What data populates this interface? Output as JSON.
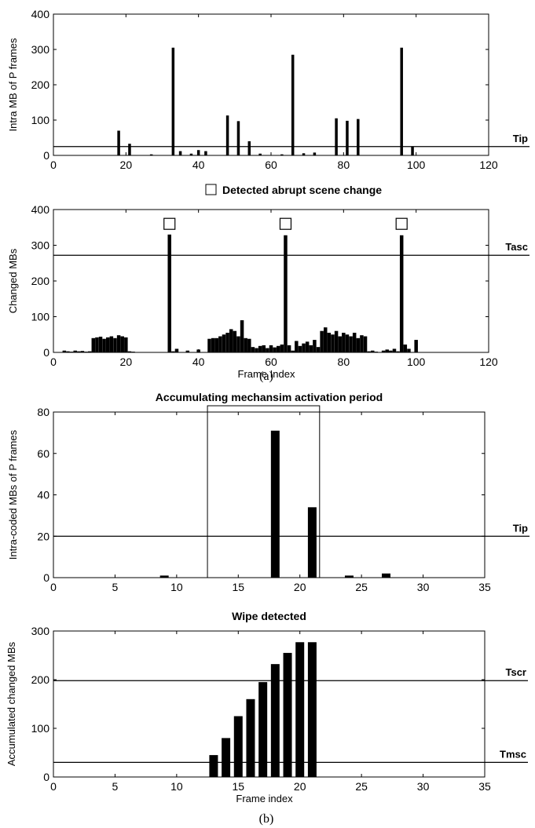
{
  "chart_data": [
    {
      "type": "bar",
      "ylabel": "Intra MB of P frames",
      "xlabel": "",
      "xlim": [
        0,
        120
      ],
      "ylim": [
        0,
        400
      ],
      "xticks": [
        0,
        20,
        40,
        60,
        80,
        100,
        120
      ],
      "yticks": [
        0,
        100,
        200,
        300,
        400
      ],
      "x": [
        18,
        21,
        27,
        33,
        35,
        38,
        40,
        42,
        48,
        51,
        54,
        57,
        63,
        66,
        69,
        72,
        78,
        81,
        84,
        96,
        99
      ],
      "values": [
        70,
        33,
        3,
        305,
        12,
        5,
        15,
        12,
        113,
        97,
        40,
        5,
        3,
        285,
        6,
        8,
        105,
        98,
        103,
        305,
        25
      ],
      "threshold": {
        "label": "Tip",
        "value": 25
      }
    },
    {
      "type": "bar",
      "title": "Detected abrupt scene change",
      "ylabel": "Changed MBs",
      "xlabel": "Frame Index",
      "xlim": [
        0,
        120
      ],
      "ylim": [
        0,
        400
      ],
      "xticks": [
        0,
        20,
        40,
        60,
        80,
        100,
        120
      ],
      "yticks": [
        0,
        100,
        200,
        300,
        400
      ],
      "x": [
        1,
        2,
        3,
        4,
        5,
        6,
        7,
        8,
        9,
        10,
        11,
        12,
        13,
        14,
        15,
        16,
        17,
        18,
        19,
        20,
        21,
        22,
        23,
        24,
        25,
        26,
        27,
        28,
        29,
        30,
        31,
        32,
        33,
        34,
        35,
        36,
        37,
        38,
        39,
        40,
        41,
        42,
        43,
        44,
        45,
        46,
        47,
        48,
        49,
        50,
        51,
        52,
        53,
        54,
        55,
        56,
        57,
        58,
        59,
        60,
        61,
        62,
        63,
        64,
        65,
        66,
        67,
        68,
        69,
        70,
        71,
        72,
        73,
        74,
        75,
        76,
        77,
        78,
        79,
        80,
        81,
        82,
        83,
        84,
        85,
        86,
        87,
        88,
        89,
        90,
        91,
        92,
        93,
        94,
        95,
        96,
        97,
        98,
        99,
        100
      ],
      "values": [
        0,
        0,
        5,
        3,
        2,
        5,
        3,
        4,
        2,
        3,
        40,
        42,
        44,
        38,
        42,
        45,
        40,
        48,
        45,
        42,
        3,
        2,
        1,
        0,
        0,
        0,
        0,
        0,
        0,
        0,
        0,
        330,
        3,
        10,
        0,
        0,
        5,
        0,
        0,
        8,
        0,
        0,
        38,
        40,
        40,
        45,
        50,
        55,
        65,
        60,
        45,
        90,
        40,
        38,
        15,
        12,
        18,
        20,
        12,
        20,
        14,
        18,
        22,
        328,
        20,
        5,
        32,
        18,
        25,
        30,
        20,
        35,
        15,
        60,
        70,
        55,
        50,
        60,
        45,
        55,
        50,
        45,
        55,
        40,
        48,
        45,
        3,
        5,
        2,
        0,
        5,
        8,
        5,
        10,
        3,
        328,
        22,
        10,
        0,
        35
      ],
      "threshold": {
        "label": "Tasc",
        "value": 272
      },
      "markers_x": [
        32,
        64,
        96
      ],
      "marker_value": 360,
      "caption": "(a)"
    },
    {
      "type": "bar",
      "title": "Accumulating mechansim activation period",
      "ylabel": "Intra-coded MBs of P frames",
      "xlabel": "",
      "xlim": [
        0,
        35
      ],
      "ylim": [
        0,
        80
      ],
      "xticks": [
        0,
        5,
        10,
        15,
        20,
        25,
        30,
        35
      ],
      "yticks": [
        0,
        20,
        40,
        60,
        80
      ],
      "x": [
        9,
        18,
        21,
        24,
        27
      ],
      "values": [
        1,
        71,
        34,
        1,
        2
      ],
      "threshold": {
        "label": "Tip",
        "value": 20
      },
      "period": [
        12.5,
        21.6
      ]
    },
    {
      "type": "bar",
      "title": "Wipe detected",
      "ylabel": "Accumulated changed MBs",
      "xlabel": "Frame index",
      "xlim": [
        0,
        35
      ],
      "ylim": [
        0,
        300
      ],
      "xticks": [
        0,
        5,
        10,
        15,
        20,
        25,
        30,
        35
      ],
      "yticks": [
        0,
        100,
        200,
        300
      ],
      "x": [
        13,
        14,
        15,
        16,
        17,
        18,
        19,
        20,
        21
      ],
      "values": [
        45,
        80,
        125,
        160,
        195,
        232,
        255,
        277,
        277
      ],
      "thresholds": [
        {
          "label": "Tscr",
          "value": 198
        },
        {
          "label": "Tmsc",
          "value": 30
        }
      ],
      "caption": "(b)"
    }
  ]
}
